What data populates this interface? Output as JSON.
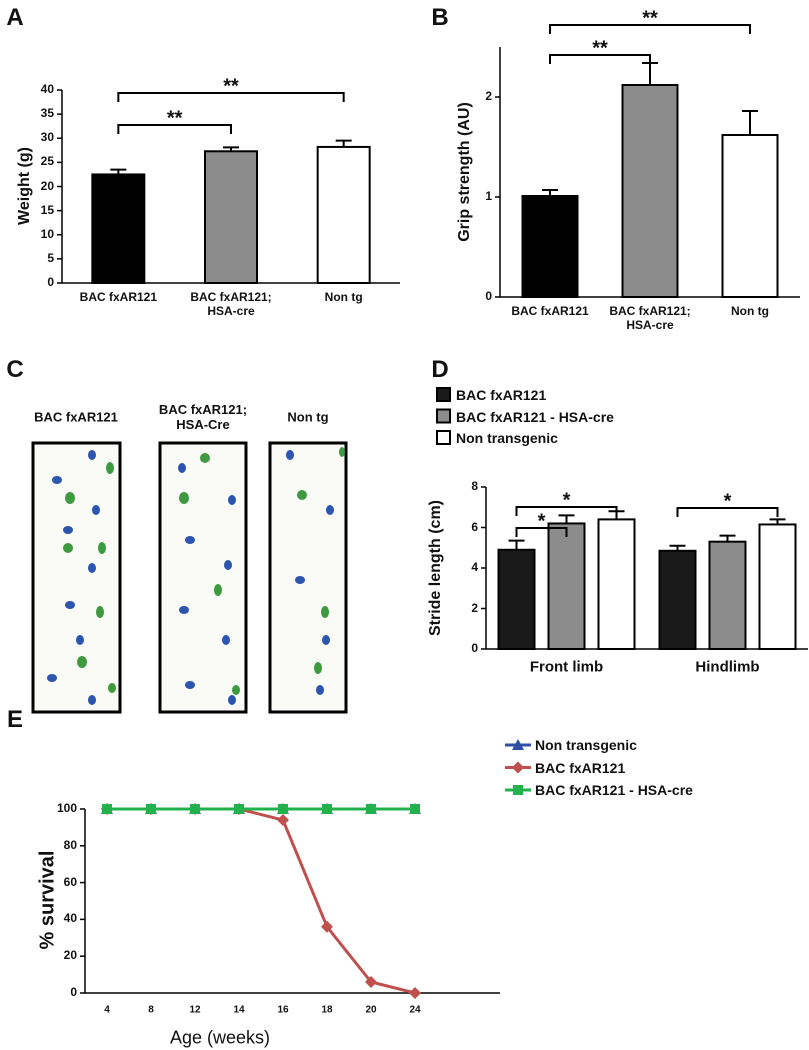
{
  "chart_data": [
    {
      "type": "bar",
      "panel": "A",
      "ylabel": "Weight (g)",
      "categories": [
        "BAC fxAR121",
        "BAC fxAR121;\nHSA-cre",
        "Non tg"
      ],
      "values": [
        22.5,
        27.3,
        28.2
      ],
      "errors": [
        1,
        0.8,
        1.3
      ],
      "colors": [
        "#000000",
        "#8c8c8c",
        "#ffffff"
      ],
      "ylim": [
        0,
        40
      ],
      "yticks": [
        0,
        5,
        10,
        15,
        20,
        25,
        30,
        35,
        40
      ],
      "annotations": [
        {
          "text": "**",
          "pair": [
            0,
            1
          ]
        },
        {
          "text": "**",
          "pair": [
            0,
            2
          ]
        }
      ]
    },
    {
      "type": "bar",
      "panel": "B",
      "ylabel": "Grip strength (AU)",
      "categories": [
        "BAC fxAR121",
        "BAC fxAR121;\nHSA-cre",
        "Non tg"
      ],
      "values": [
        1.01,
        2.12,
        1.62
      ],
      "errors": [
        0.06,
        0.22,
        0.24
      ],
      "colors": [
        "#000000",
        "#8c8c8c",
        "#ffffff"
      ],
      "ylim": [
        0,
        2.5
      ],
      "yticks": [
        0,
        1,
        2
      ],
      "annotations": [
        {
          "text": "**",
          "pair": [
            0,
            1
          ]
        },
        {
          "text": "**",
          "pair": [
            0,
            2
          ]
        }
      ]
    },
    {
      "type": "grouped-bar",
      "panel": "D",
      "ylabel": "Stride length (cm)",
      "categories": [
        "Front limb",
        "Hindlimb"
      ],
      "series": [
        {
          "name": "BAC fxAR121",
          "color": "#1a1a1a",
          "values": [
            4.9,
            4.85
          ],
          "errors": [
            0.45,
            0.25
          ]
        },
        {
          "name": "BAC fxAR121 - HSA-cre",
          "color": "#8c8c8c",
          "values": [
            6.2,
            5.3
          ],
          "errors": [
            0.4,
            0.3
          ]
        },
        {
          "name": "Non transgenic",
          "color": "#ffffff",
          "values": [
            6.4,
            6.15
          ],
          "errors": [
            0.4,
            0.25
          ]
        }
      ],
      "ylim": [
        0,
        8
      ],
      "yticks": [
        0,
        2,
        4,
        6,
        8
      ],
      "annotations": [
        {
          "text": "*",
          "category": 0,
          "pair": [
            0,
            1
          ]
        },
        {
          "text": "*",
          "category": 0,
          "pair": [
            0,
            2
          ]
        },
        {
          "text": "*",
          "category": 1,
          "pair": [
            0,
            2
          ]
        }
      ]
    },
    {
      "type": "line",
      "panel": "E",
      "xlabel": "Age (weeks)",
      "ylabel": "% survival",
      "categories": [
        "4",
        "8",
        "12",
        "14",
        "16",
        "18",
        "20",
        "24"
      ],
      "series": [
        {
          "name": "Non transgenic",
          "color": "#2e4fa3",
          "marker": "triangle",
          "values": [
            100,
            100,
            100,
            100,
            100,
            100,
            100,
            100
          ]
        },
        {
          "name": "BAC fxAR121",
          "color": "#c0504d",
          "marker": "diamond",
          "values": [
            100,
            100,
            100,
            100,
            94,
            36,
            6,
            0
          ]
        },
        {
          "name": "BAC fxAR121 - HSA-cre",
          "color": "#22b14c",
          "marker": "square",
          "values": [
            100,
            100,
            100,
            100,
            100,
            100,
            100,
            100
          ]
        }
      ],
      "ylim": [
        0,
        100
      ],
      "yticks": [
        0,
        20,
        40,
        60,
        80,
        100
      ]
    }
  ],
  "footprint_panel": {
    "panel": "C",
    "titles": [
      "BAC fxAR121",
      "BAC fxAR121;\nHSA-Cre",
      "Non tg"
    ]
  }
}
